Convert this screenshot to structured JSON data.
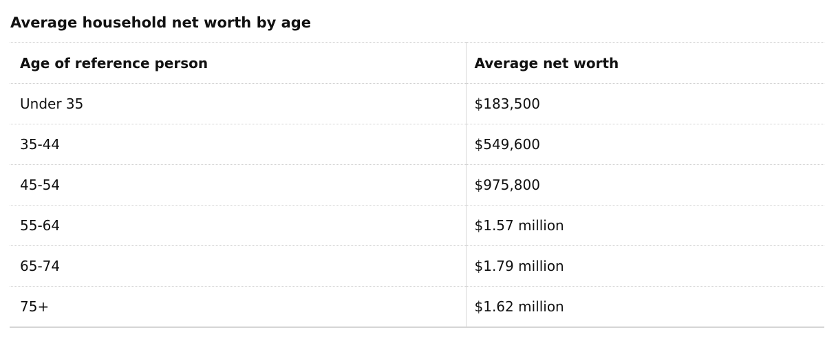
{
  "title": "Average household net worth by age",
  "table": {
    "headers": [
      "Age of reference person",
      "Average net worth"
    ],
    "rows": [
      [
        "Under 35",
        "$183,500"
      ],
      [
        "35-44",
        "$549,600"
      ],
      [
        "45-54",
        "$975,800"
      ],
      [
        "55-64",
        "$1.57 million"
      ],
      [
        "65-74",
        "$1.79 million"
      ],
      [
        "75+",
        "$1.62 million"
      ]
    ]
  }
}
